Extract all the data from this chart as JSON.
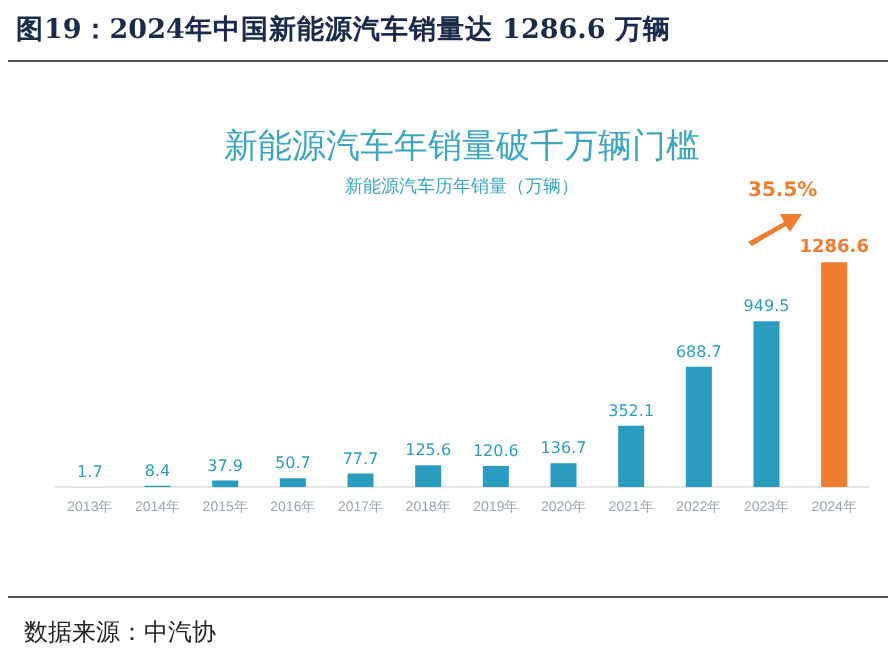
{
  "chart_data": {
    "type": "bar",
    "title": "图19：2024年中国新能源汽车销量达 1286.6 万辆",
    "subtitle": "新能源汽车年销量破千万辆门槛",
    "ylabel": "新能源汽车历年销量（万辆）",
    "categories": [
      "2013年",
      "2014年",
      "2015年",
      "2016年",
      "2017年",
      "2018年",
      "2019年",
      "2020年",
      "2021年",
      "2022年",
      "2023年",
      "2024年"
    ],
    "values": [
      1.7,
      8.4,
      37.9,
      50.7,
      77.7,
      125.6,
      120.6,
      136.7,
      352.1,
      688.7,
      949.5,
      1286.6
    ],
    "colors": [
      "#2a9dbf",
      "#2a9dbf",
      "#2a9dbf",
      "#2a9dbf",
      "#2a9dbf",
      "#2a9dbf",
      "#2a9dbf",
      "#2a9dbf",
      "#2a9dbf",
      "#2a9dbf",
      "#2a9dbf",
      "#ee7d31"
    ],
    "data_labels": true,
    "grid": false,
    "legend": false,
    "tick_labels": "x",
    "annotations": [
      "35.5%",
      "数据来源：中汽协"
    ]
  }
}
